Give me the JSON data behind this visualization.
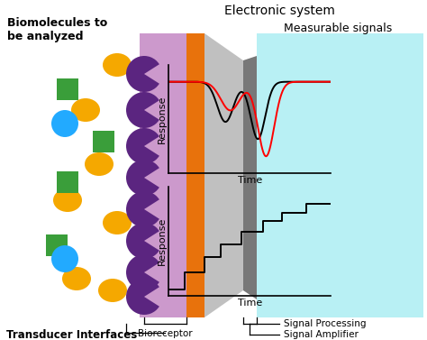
{
  "title": "Electronic system",
  "bg_color": "#ffffff",
  "cyan_bg": "#b8f0f4",
  "label_biomolecules": "Biomolecules to\nbe analyzed",
  "label_bioreceptor": "Bioreceptor",
  "label_transducer": "Transducer Interfaces",
  "label_signal_processing": "Signal Processing",
  "label_signal_amplifier": "Signal Amplifier",
  "label_measurable": "Measurable signals",
  "label_response": "Response",
  "label_time": "Time",
  "purple": "#5b2580",
  "orange": "#e8720c",
  "lavender": "#cc99cc",
  "gold": "#f5a800",
  "green": "#3a9e3a",
  "blue": "#22aaff",
  "gray_light": "#c0c0c0",
  "gray_mid": "#a0a0a0",
  "gray_dark": "#787878"
}
